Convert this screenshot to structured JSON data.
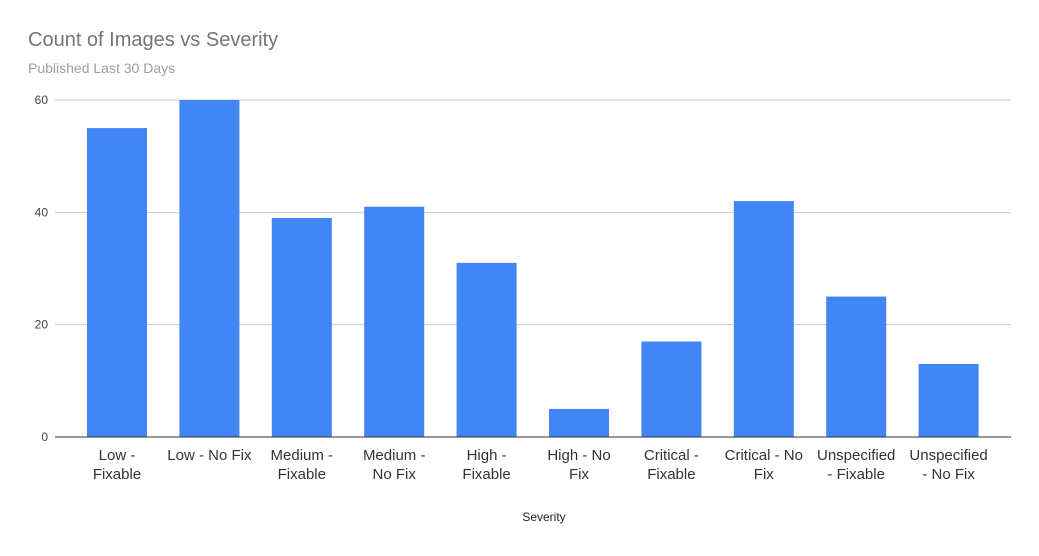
{
  "chart_data": {
    "type": "bar",
    "title": "Count of Images vs Severity",
    "subtitle": "Published Last 30 Days",
    "xlabel": "Severity",
    "ylabel": "",
    "categories": [
      "Low - Fixable",
      "Low - No Fix",
      "Medium - Fixable",
      "Medium - No Fix",
      "High - Fixable",
      "High - No Fix",
      "Critical - Fixable",
      "Critical - No Fix",
      "Unspecified - Fixable",
      "Unspecified - No Fix"
    ],
    "category_label_lines": [
      [
        "Low -",
        "Fixable"
      ],
      [
        "Low - No Fix"
      ],
      [
        "Medium -",
        "Fixable"
      ],
      [
        "Medium -",
        "No Fix"
      ],
      [
        "High -",
        "Fixable"
      ],
      [
        "High - No",
        "Fix"
      ],
      [
        "Critical -",
        "Fixable"
      ],
      [
        "Critical - No",
        "Fix"
      ],
      [
        "Unspecified",
        "- Fixable"
      ],
      [
        "Unspecified",
        "- No Fix"
      ]
    ],
    "values": [
      55,
      60,
      39,
      41,
      31,
      5,
      17,
      42,
      25,
      13
    ],
    "ylim": [
      0,
      60
    ],
    "yticks": [
      0,
      20,
      40,
      60
    ],
    "grid": true,
    "legend": "none",
    "colors": {
      "bar": "#4285f4",
      "grid": "#cccccc",
      "axis": "#333333"
    }
  }
}
